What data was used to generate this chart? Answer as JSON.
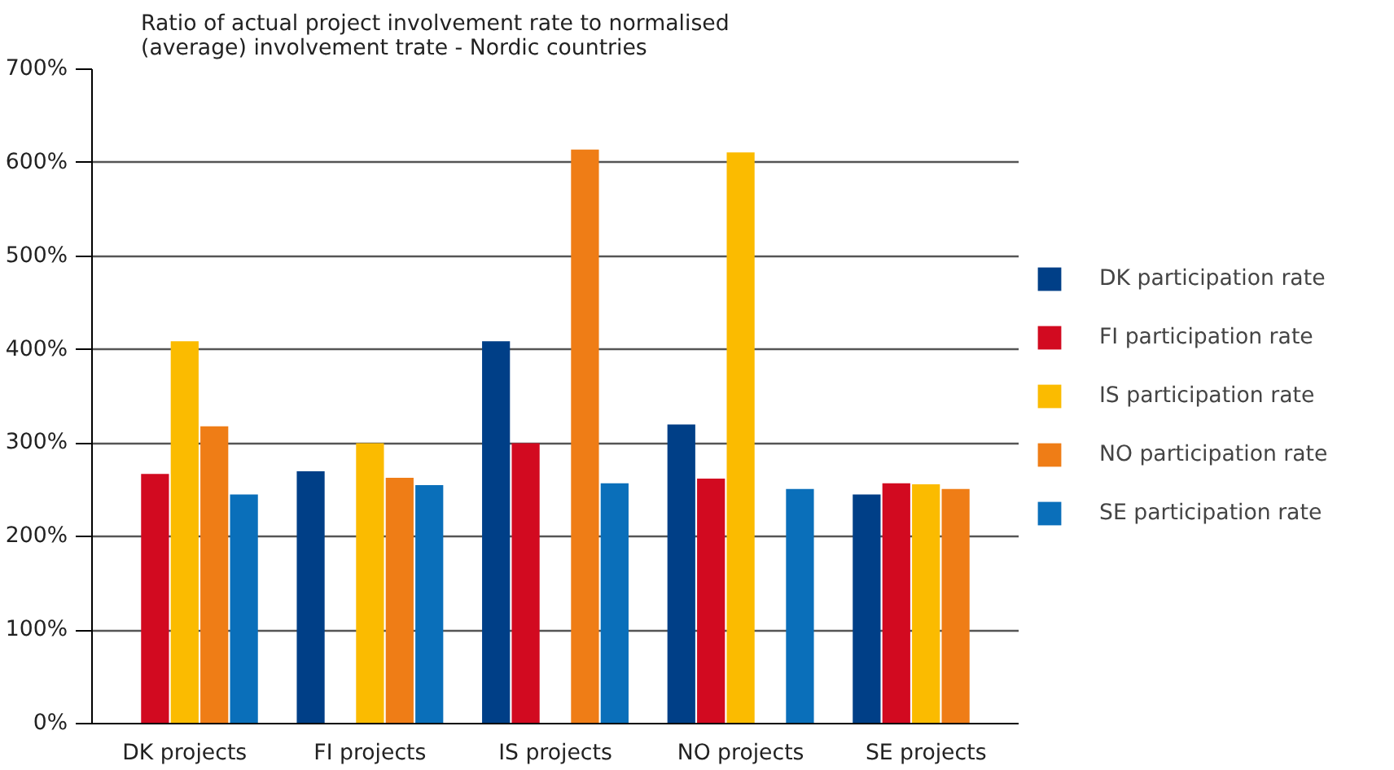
{
  "chart_data": {
    "type": "bar",
    "title": "Ratio of actual project involvement rate to normalised (average) involvement trate - Nordic countries",
    "categories": [
      "DK projects",
      "FI projects",
      "IS projects",
      "NO projects",
      "SE projects"
    ],
    "series": [
      {
        "name": "DK participation rate",
        "color": "#003f87",
        "values": [
          null,
          270,
          409,
          320,
          245
        ]
      },
      {
        "name": "FI participation rate",
        "color": "#d20a20",
        "values": [
          267,
          null,
          300,
          262,
          257
        ]
      },
      {
        "name": "IS participation rate",
        "color": "#fbbb00",
        "values": [
          409,
          300,
          null,
          611,
          256
        ]
      },
      {
        "name": "NO participation rate",
        "color": "#ef7d16",
        "values": [
          318,
          263,
          614,
          null,
          251
        ]
      },
      {
        "name": "SE participation rate",
        "color": "#0a6fba",
        "values": [
          245,
          255,
          257,
          251,
          null
        ]
      }
    ],
    "ylim": [
      0,
      700
    ],
    "yticks": [
      {
        "value": 0,
        "label": "0%"
      },
      {
        "value": 100,
        "label": "100%"
      },
      {
        "value": 200,
        "label": "200%"
      },
      {
        "value": 300,
        "label": "300%"
      },
      {
        "value": 400,
        "label": "400%"
      },
      {
        "value": 500,
        "label": "500%"
      },
      {
        "value": 600,
        "label": "600%"
      },
      {
        "value": 700,
        "label": "700%"
      }
    ],
    "grid": "y",
    "legend": "right"
  }
}
